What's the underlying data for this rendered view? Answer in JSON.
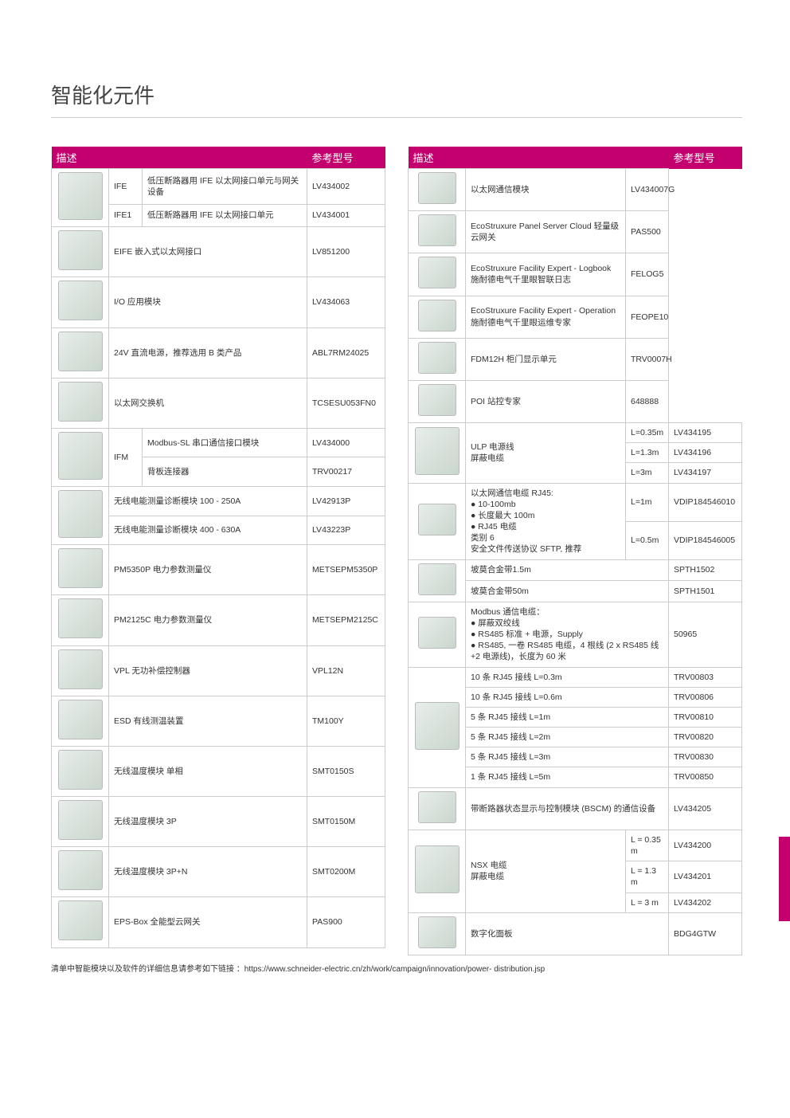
{
  "title": "智能化元件",
  "headers": {
    "desc": "描述",
    "ref": "参考型号"
  },
  "left": [
    {
      "img": true,
      "imgRows": 2,
      "code": "IFE",
      "desc": "低压断路器用 IFE 以太网接口单元与网关设备",
      "ref": "LV434002"
    },
    {
      "code": "IFE1",
      "desc": "低压断路器用 IFE 以太网接口单元",
      "ref": "LV434001"
    },
    {
      "img": true,
      "desc": "EIFE 嵌入式以太网接口",
      "descSpan": 2,
      "ref": "LV851200"
    },
    {
      "img": true,
      "desc": "I/O 应用模块",
      "descSpan": 2,
      "ref": "LV434063"
    },
    {
      "img": true,
      "desc": "24V 直流电源，推荐选用 B 类产品",
      "descSpan": 2,
      "ref": "ABL7RM24025"
    },
    {
      "img": true,
      "desc": "以太网交换机",
      "descSpan": 2,
      "ref": "TCSESU053FN0"
    },
    {
      "img": true,
      "imgRows": 2,
      "code": "IFM",
      "codeRows": 2,
      "desc": "Modbus-SL 串口通信接口模块",
      "ref": "LV434000"
    },
    {
      "desc": "背板连接器",
      "ref": "TRV00217"
    },
    {
      "img": true,
      "imgRows": 2,
      "desc": "无线电能测量诊断模块 100 - 250A",
      "descSpan": 2,
      "ref": "LV42913P"
    },
    {
      "desc": "无线电能测量诊断模块 400 - 630A",
      "descSpan": 2,
      "ref": "LV43223P"
    },
    {
      "img": true,
      "desc": "PM5350P 电力参数测量仪",
      "descSpan": 2,
      "ref": "METSEPM5350P"
    },
    {
      "img": true,
      "desc": "PM2125C 电力参数测量仪",
      "descSpan": 2,
      "ref": "METSEPM2125C"
    },
    {
      "img": true,
      "desc": "VPL 无功补偿控制器",
      "descSpan": 2,
      "ref": "VPL12N"
    },
    {
      "img": true,
      "desc": "ESD 有线测温装置",
      "descSpan": 2,
      "ref": "TM100Y"
    },
    {
      "img": true,
      "desc": "无线温度模块 单相",
      "descSpan": 2,
      "ref": "SMT0150S"
    },
    {
      "img": true,
      "desc": "无线温度模块 3P",
      "descSpan": 2,
      "ref": "SMT0150M"
    },
    {
      "img": true,
      "desc": "无线温度模块 3P+N",
      "descSpan": 2,
      "ref": "SMT0200M"
    },
    {
      "img": true,
      "desc": "EPS-Box 全能型云网关",
      "descSpan": 2,
      "ref": "PAS900"
    }
  ],
  "right": [
    {
      "img": true,
      "desc": "以太网通信模块",
      "ref": "LV434007G"
    },
    {
      "img": true,
      "desc": "EcoStruxure Panel Server Cloud 轻量级云网关",
      "ref": "PAS500"
    },
    {
      "img": true,
      "desc": "EcoStruxure Facility Expert - Logbook 施耐德电气千里眼智联日志",
      "ref": "FELOG5"
    },
    {
      "img": true,
      "desc": "EcoStruxure Facility Expert - Operation 施耐德电气千里眼运维专家",
      "ref": "FEOPE10"
    },
    {
      "img": true,
      "desc": "FDM12H 柜门显示单元",
      "ref": "TRV0007H"
    },
    {
      "img": true,
      "desc": "POI 站控专家",
      "ref": "648888"
    },
    {
      "img": true,
      "imgRows": 3,
      "desc": "ULP 电源线\n屏蔽电缆",
      "descRows": 3,
      "len": "L=0.35m",
      "ref": "LV434195"
    },
    {
      "len": "L=1.3m",
      "ref": "LV434196"
    },
    {
      "len": "L=3m",
      "ref": "LV434197"
    },
    {
      "img": true,
      "imgRows": 2,
      "desc": "以太网通信电缆 RJ45:\n● 10-100mb\n● 长度最大 100m\n● RJ45 电缆\n类别 6\n安全文件传送协议 SFTP, 推荐",
      "descRows": 2,
      "len": "L=1m",
      "ref": "VDIP184546010"
    },
    {
      "len": "L=0.5m",
      "ref": "VDIP184546005"
    },
    {
      "img": true,
      "imgRows": 2,
      "desc": "坡莫合金带1.5m",
      "descSpan": 2,
      "ref": "SPTH1502"
    },
    {
      "desc": "坡莫合金带50m",
      "descSpan": 2,
      "ref": "SPTH1501"
    },
    {
      "img": true,
      "desc": "Modbus 通信电缆：\n● 屏蔽双绞线\n● RS485 标准 + 电源，Supply\n● RS485, 一卷 RS485 电缆，4 根线 (2 x RS485 线 +2 电源线)，长度为 60 米",
      "descSpan": 2,
      "ref": "50965"
    },
    {
      "img": true,
      "imgRows": 6,
      "desc": "10 条 RJ45 接线 L=0.3m",
      "descSpan": 2,
      "ref": "TRV00803"
    },
    {
      "desc": "10 条 RJ45 接线 L=0.6m",
      "descSpan": 2,
      "ref": "TRV00806"
    },
    {
      "desc": "5 条 RJ45 接线 L=1m",
      "descSpan": 2,
      "ref": "TRV00810"
    },
    {
      "desc": "5 条 RJ45 接线 L=2m",
      "descSpan": 2,
      "ref": "TRV00820"
    },
    {
      "desc": "5 条 RJ45 接线 L=3m",
      "descSpan": 2,
      "ref": "TRV00830"
    },
    {
      "desc": "1 条 RJ45 接线 L=5m",
      "descSpan": 2,
      "ref": "TRV00850"
    },
    {
      "img": true,
      "desc": "带断路器状态显示与控制模块 (BSCM) 的通信设备",
      "descSpan": 2,
      "ref": "LV434205"
    },
    {
      "img": true,
      "imgRows": 3,
      "desc": "NSX 电缆\n屏蔽电缆",
      "descRows": 3,
      "len": "L = 0.35 m",
      "ref": "LV434200"
    },
    {
      "len": "L = 1.3 m",
      "ref": "LV434201"
    },
    {
      "len": "L = 3 m",
      "ref": "LV434202"
    },
    {
      "img": true,
      "desc": "数字化面板",
      "descSpan": 2,
      "ref": "BDG4GTW"
    }
  ],
  "footnote": "清单中智能模块以及软件的详细信息请参考如下链接 ：https://www.schneider-electric.cn/zh/work/campaign/innovation/power- distribution.jsp",
  "colors": {
    "brand": "#c4006e",
    "border": "#cccccc",
    "text": "#333333"
  }
}
